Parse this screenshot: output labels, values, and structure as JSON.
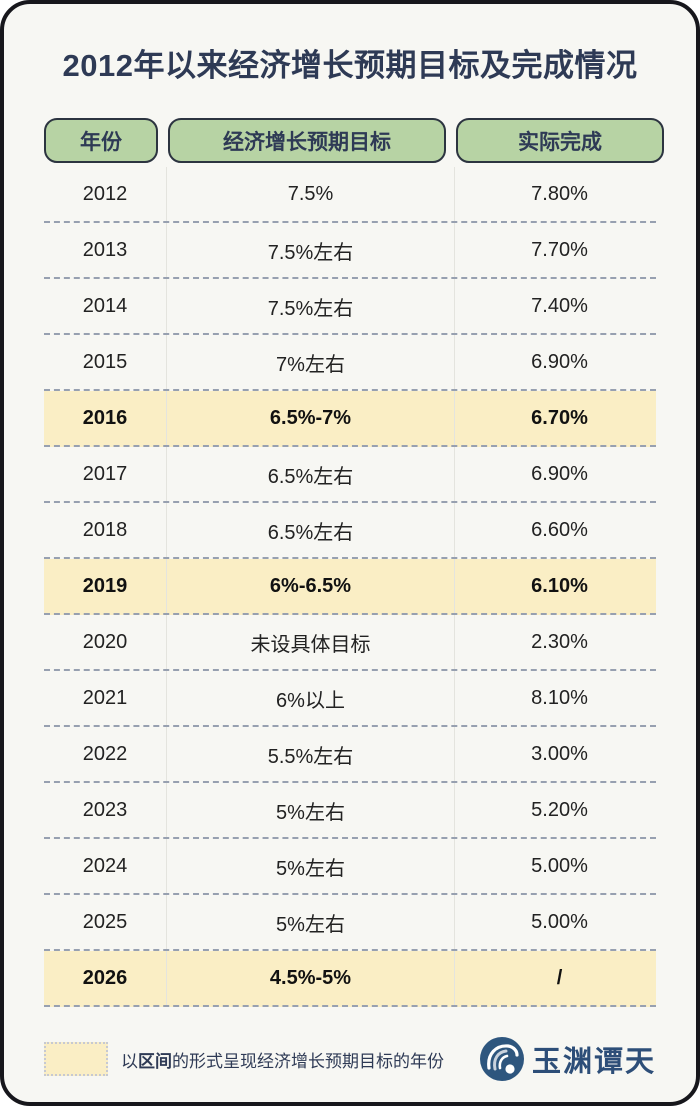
{
  "chart_data": {
    "type": "table",
    "title": "2012年以来经济增长预期目标及完成情况",
    "columns": [
      "年份",
      "经济增长预期目标",
      "实际完成"
    ],
    "rows": [
      [
        "2012",
        "7.5%",
        "7.80%"
      ],
      [
        "2013",
        "7.5%左右",
        "7.70%"
      ],
      [
        "2014",
        "7.5%左右",
        "7.40%"
      ],
      [
        "2015",
        "7%左右",
        "6.90%"
      ],
      [
        "2016",
        "6.5%-7%",
        "6.70%"
      ],
      [
        "2017",
        "6.5%左右",
        "6.90%"
      ],
      [
        "2018",
        "6.5%左右",
        "6.60%"
      ],
      [
        "2019",
        "6%-6.5%",
        "6.10%"
      ],
      [
        "2020",
        "未设具体目标",
        "2.30%"
      ],
      [
        "2021",
        "6%以上",
        "8.10%"
      ],
      [
        "2022",
        "5.5%左右",
        "3.00%"
      ],
      [
        "2023",
        "5%左右",
        "5.20%"
      ],
      [
        "2024",
        "5%左右",
        "5.00%"
      ],
      [
        "2025",
        "5%左右",
        "5.00%"
      ],
      [
        "2026",
        "4.5%-5%",
        "/"
      ]
    ],
    "highlight_row_indices": [
      4,
      7,
      14
    ],
    "highlight_years": [
      "2016",
      "2019",
      "2026"
    ],
    "highlight_meaning": "以区间的形式呈现经济增长预期目标的年份"
  },
  "legend": {
    "prefix": "以",
    "bold": "区间",
    "suffix": "的形式呈现经济增长预期目标的年份"
  },
  "logo": {
    "text": "玉渊谭天"
  },
  "colors": {
    "card_bg": "#f7f7f3",
    "card_border": "#17171c",
    "title_navy": "#2e3a55",
    "header_green": "#b7d3a4",
    "highlight_yellow": "#faeec5",
    "dashed_gray": "#97a0b0",
    "logo_blue": "#2d4e78"
  }
}
